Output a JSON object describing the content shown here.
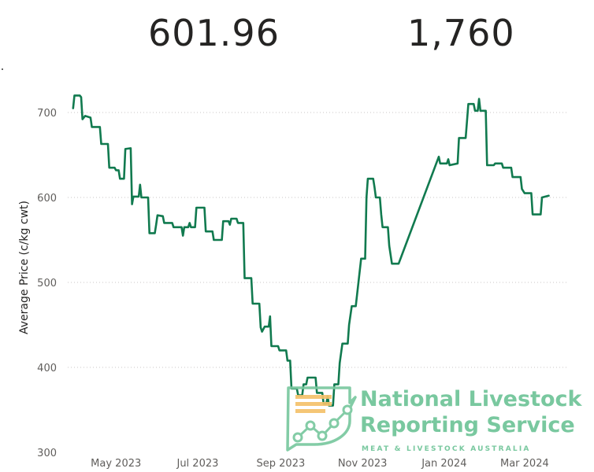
{
  "kpis": {
    "avg_price": "601.96",
    "head_count": "1,760"
  },
  "watermark": {
    "line1": "National Livestock",
    "line2": "Reporting Service",
    "subtitle": "MEAT & LIVESTOCK AUSTRALIA",
    "color": "#79c89f",
    "icon": "nlrs-logo-icon"
  },
  "chart_data": {
    "type": "line",
    "ylabel": "Average Price (c/kg cwt)",
    "ylim": [
      300,
      720
    ],
    "yticks": [
      300,
      400,
      500,
      600,
      700
    ],
    "xlim": [
      "2023-03-26",
      "2024-04-03"
    ],
    "xticks": [
      {
        "date": "2023-05-01",
        "label": "May 2023"
      },
      {
        "date": "2023-07-01",
        "label": "Jul 2023"
      },
      {
        "date": "2023-09-01",
        "label": "Sep 2023"
      },
      {
        "date": "2023-11-01",
        "label": "Nov 2023"
      },
      {
        "date": "2024-01-01",
        "label": "Jan 2024"
      },
      {
        "date": "2024-03-01",
        "label": "Mar 2024"
      }
    ],
    "grid": true,
    "line_color": "#117a4f",
    "series": [
      {
        "points": [
          [
            "2023-03-30",
            705
          ],
          [
            "2023-03-31",
            720
          ],
          [
            "2023-04-04",
            720
          ],
          [
            "2023-04-05",
            718
          ],
          [
            "2023-04-06",
            692
          ],
          [
            "2023-04-08",
            696
          ],
          [
            "2023-04-12",
            694
          ],
          [
            "2023-04-13",
            683
          ],
          [
            "2023-04-19",
            683
          ],
          [
            "2023-04-20",
            663
          ],
          [
            "2023-04-25",
            663
          ],
          [
            "2023-04-26",
            635
          ],
          [
            "2023-04-30",
            635
          ],
          [
            "2023-05-01",
            632
          ],
          [
            "2023-05-03",
            632
          ],
          [
            "2023-05-04",
            622
          ],
          [
            "2023-05-07",
            622
          ],
          [
            "2023-05-08",
            657
          ],
          [
            "2023-05-12",
            658
          ],
          [
            "2023-05-13",
            592
          ],
          [
            "2023-05-14",
            601
          ],
          [
            "2023-05-18",
            601
          ],
          [
            "2023-05-19",
            615
          ],
          [
            "2023-05-20",
            600
          ],
          [
            "2023-05-25",
            600
          ],
          [
            "2023-05-26",
            558
          ],
          [
            "2023-05-30",
            558
          ],
          [
            "2023-05-31",
            568
          ],
          [
            "2023-06-01",
            579
          ],
          [
            "2023-06-05",
            578
          ],
          [
            "2023-06-06",
            570
          ],
          [
            "2023-06-12",
            570
          ],
          [
            "2023-06-13",
            565
          ],
          [
            "2023-06-19",
            565
          ],
          [
            "2023-06-20",
            555
          ],
          [
            "2023-06-21",
            565
          ],
          [
            "2023-06-24",
            565
          ],
          [
            "2023-06-25",
            570
          ],
          [
            "2023-06-26",
            565
          ],
          [
            "2023-06-29",
            565
          ],
          [
            "2023-06-30",
            588
          ],
          [
            "2023-07-06",
            588
          ],
          [
            "2023-07-07",
            560
          ],
          [
            "2023-07-12",
            560
          ],
          [
            "2023-07-13",
            550
          ],
          [
            "2023-07-19",
            550
          ],
          [
            "2023-07-20",
            572
          ],
          [
            "2023-07-24",
            572
          ],
          [
            "2023-07-25",
            568
          ],
          [
            "2023-07-26",
            575
          ],
          [
            "2023-07-30",
            575
          ],
          [
            "2023-07-31",
            570
          ],
          [
            "2023-08-04",
            570
          ],
          [
            "2023-08-05",
            505
          ],
          [
            "2023-08-10",
            505
          ],
          [
            "2023-08-11",
            475
          ],
          [
            "2023-08-16",
            475
          ],
          [
            "2023-08-17",
            447
          ],
          [
            "2023-08-18",
            442
          ],
          [
            "2023-08-20",
            448
          ],
          [
            "2023-08-23",
            448
          ],
          [
            "2023-08-24",
            460
          ],
          [
            "2023-08-25",
            425
          ],
          [
            "2023-08-30",
            425
          ],
          [
            "2023-08-31",
            420
          ],
          [
            "2023-09-05",
            420
          ],
          [
            "2023-09-06",
            408
          ],
          [
            "2023-09-08",
            408
          ],
          [
            "2023-09-09",
            375
          ],
          [
            "2023-09-13",
            375
          ],
          [
            "2023-09-14",
            367
          ],
          [
            "2023-09-17",
            367
          ],
          [
            "2023-09-18",
            380
          ],
          [
            "2023-09-20",
            380
          ],
          [
            "2023-09-21",
            388
          ],
          [
            "2023-09-27",
            388
          ],
          [
            "2023-09-28",
            370
          ],
          [
            "2023-10-02",
            370
          ],
          [
            "2023-10-03",
            357
          ],
          [
            "2023-10-05",
            357
          ],
          [
            "2023-10-06",
            366
          ],
          [
            "2023-10-07",
            355
          ],
          [
            "2023-10-10",
            355
          ],
          [
            "2023-10-11",
            380
          ],
          [
            "2023-10-14",
            380
          ],
          [
            "2023-10-15",
            405
          ],
          [
            "2023-10-17",
            428
          ],
          [
            "2023-10-21",
            428
          ],
          [
            "2023-10-22",
            450
          ],
          [
            "2023-10-24",
            472
          ],
          [
            "2023-10-27",
            472
          ],
          [
            "2023-10-29",
            500
          ],
          [
            "2023-10-31",
            528
          ],
          [
            "2023-11-03",
            528
          ],
          [
            "2023-11-04",
            600
          ],
          [
            "2023-11-05",
            622
          ],
          [
            "2023-11-09",
            622
          ],
          [
            "2023-11-10",
            612
          ],
          [
            "2023-11-11",
            600
          ],
          [
            "2023-11-14",
            600
          ],
          [
            "2023-11-15",
            580
          ],
          [
            "2023-11-16",
            565
          ],
          [
            "2023-11-20",
            565
          ],
          [
            "2023-11-21",
            543
          ],
          [
            "2023-11-23",
            522
          ],
          [
            "2023-11-28",
            522
          ],
          [
            "2023-12-28",
            648
          ],
          [
            "2023-12-29",
            640
          ],
          [
            "2024-01-03",
            640
          ],
          [
            "2024-01-04",
            645
          ],
          [
            "2024-01-05",
            638
          ],
          [
            "2024-01-11",
            640
          ],
          [
            "2024-01-12",
            670
          ],
          [
            "2024-01-17",
            670
          ],
          [
            "2024-01-18",
            690
          ],
          [
            "2024-01-19",
            710
          ],
          [
            "2024-01-23",
            710
          ],
          [
            "2024-01-24",
            702
          ],
          [
            "2024-01-26",
            702
          ],
          [
            "2024-01-27",
            716
          ],
          [
            "2024-01-28",
            702
          ],
          [
            "2024-02-01",
            702
          ],
          [
            "2024-02-02",
            638
          ],
          [
            "2024-02-07",
            638
          ],
          [
            "2024-02-08",
            640
          ],
          [
            "2024-02-13",
            640
          ],
          [
            "2024-02-14",
            635
          ],
          [
            "2024-02-20",
            635
          ],
          [
            "2024-02-21",
            624
          ],
          [
            "2024-02-27",
            624
          ],
          [
            "2024-02-28",
            610
          ],
          [
            "2024-03-01",
            605
          ],
          [
            "2024-03-06",
            605
          ],
          [
            "2024-03-07",
            580
          ],
          [
            "2024-03-13",
            580
          ],
          [
            "2024-03-14",
            600
          ],
          [
            "2024-03-19",
            602
          ]
        ]
      }
    ]
  }
}
